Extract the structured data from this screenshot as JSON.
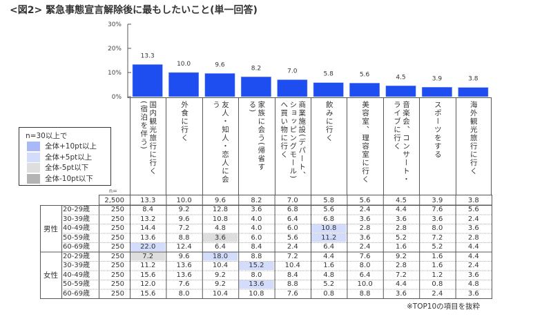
{
  "title": "<図2> 緊急事態宣言解除後に最もしたいこと(単一回答)",
  "colors": {
    "bar": "#1f4ef0",
    "plus10": "#a9b9f7",
    "plus5": "#d3dcfb",
    "minus5": "#dedede",
    "minus10": "#b4b4b4"
  },
  "legend": {
    "title": "n=30以上で",
    "items": [
      {
        "label": "全体+10pt以上",
        "color_key": "plus10"
      },
      {
        "label": "全体+5pt以上",
        "color_key": "plus5"
      },
      {
        "label": "全体-5pt以下",
        "color_key": "minus5"
      },
      {
        "label": "全体-10pt以下",
        "color_key": "minus10"
      }
    ]
  },
  "chart_data": {
    "type": "bar",
    "title": "<図2> 緊急事態宣言解除後に最もしたいこと(単一回答)",
    "ylim": [
      0,
      30
    ],
    "yticks": [
      "0%",
      "10%",
      "20%",
      "30%"
    ],
    "ytick_values": [
      0,
      10,
      20,
      30
    ],
    "categories": [
      {
        "lines": [
          "国内観光旅行に行く",
          "(宿泊を伴う)"
        ]
      },
      {
        "lines": [
          "外食に行く"
        ]
      },
      {
        "lines": [
          "友人・知人・恋人に会",
          "う"
        ]
      },
      {
        "lines": [
          "家族に会う(帰省す",
          "る)"
        ]
      },
      {
        "lines": [
          "商業施設(デパート、",
          "ショッピングモール)",
          "へ買い物に行く"
        ]
      },
      {
        "lines": [
          "飲みに行く"
        ]
      },
      {
        "lines": [
          "美容室、理容室に行く"
        ]
      },
      {
        "lines": [
          "音楽会、コンサート・",
          "ライブに行く"
        ]
      },
      {
        "lines": [
          "スポーツをする"
        ]
      },
      {
        "lines": [
          "海外観光旅行に行く"
        ]
      }
    ],
    "values": [
      13.3,
      10.0,
      9.6,
      8.2,
      7.0,
      5.8,
      5.6,
      4.5,
      3.9,
      3.8
    ],
    "value_labels": [
      "13.3",
      "10.0",
      "9.6",
      "8.2",
      "7.0",
      "5.8",
      "5.6",
      "4.5",
      "3.9",
      "3.8"
    ],
    "grid": false
  },
  "table": {
    "n_label": "n=",
    "total": {
      "n": "2,500",
      "values": [
        "13.3",
        "10.0",
        "9.6",
        "8.2",
        "7.0",
        "5.8",
        "5.6",
        "4.5",
        "3.9",
        "3.8"
      ]
    },
    "groups": [
      {
        "label": "男性",
        "rows": [
          {
            "age": "20-29歳",
            "n": "250",
            "values": [
              "8.4",
              "9.2",
              "12.8",
              "3.6",
              "6.8",
              "5.6",
              "2.4",
              "4.4",
              "7.6",
              "5.6"
            ],
            "highlights": [
              null,
              null,
              null,
              null,
              null,
              null,
              null,
              null,
              null,
              null
            ]
          },
          {
            "age": "30-39歳",
            "n": "250",
            "values": [
              "13.2",
              "9.6",
              "10.8",
              "4.0",
              "6.4",
              "6.8",
              "3.6",
              "3.6",
              "3.6",
              "2.4"
            ],
            "highlights": [
              null,
              null,
              null,
              null,
              null,
              null,
              null,
              null,
              null,
              null
            ]
          },
          {
            "age": "40-49歳",
            "n": "250",
            "values": [
              "14.4",
              "7.2",
              "4.8",
              "4.0",
              "6.0",
              "10.8",
              "2.8",
              "2.8",
              "8.0",
              "3.6"
            ],
            "highlights": [
              null,
              null,
              null,
              null,
              null,
              "plus5",
              null,
              null,
              null,
              null
            ]
          },
          {
            "age": "50-59歳",
            "n": "250",
            "values": [
              "13.6",
              "8.8",
              "3.6",
              "6.0",
              "5.6",
              "11.2",
              "3.6",
              "5.2",
              "7.2",
              "2.8"
            ],
            "highlights": [
              null,
              null,
              "minus5",
              null,
              null,
              "plus5",
              null,
              null,
              null,
              null
            ]
          },
          {
            "age": "60-69歳",
            "n": "250",
            "values": [
              "22.0",
              "12.4",
              "6.4",
              "8.4",
              "2.4",
              "6.4",
              "2.4",
              "1.6",
              "5.2",
              "4.4"
            ],
            "highlights": [
              "plus5",
              null,
              null,
              null,
              null,
              null,
              null,
              null,
              null,
              null
            ]
          }
        ]
      },
      {
        "label": "女性",
        "rows": [
          {
            "age": "20-29歳",
            "n": "250",
            "values": [
              "7.2",
              "9.6",
              "18.0",
              "8.8",
              "7.2",
              "4.4",
              "7.6",
              "9.2",
              "1.6",
              "4.4"
            ],
            "highlights": [
              "minus5",
              null,
              "plus5",
              null,
              null,
              null,
              null,
              null,
              null,
              null
            ]
          },
          {
            "age": "30-39歳",
            "n": "250",
            "values": [
              "11.2",
              "13.6",
              "10.4",
              "15.2",
              "10.4",
              "1.6",
              "8.0",
              "2.8",
              "1.6",
              "2.4"
            ],
            "highlights": [
              null,
              null,
              null,
              "plus5",
              null,
              null,
              null,
              null,
              null,
              null
            ]
          },
          {
            "age": "40-49歳",
            "n": "250",
            "values": [
              "15.6",
              "13.6",
              "9.2",
              "8.0",
              "8.4",
              "4.8",
              "6.4",
              "7.2",
              "1.2",
              "3.6"
            ],
            "highlights": [
              null,
              null,
              null,
              null,
              null,
              null,
              null,
              null,
              null,
              null
            ]
          },
          {
            "age": "50-59歳",
            "n": "250",
            "values": [
              "12.0",
              "7.6",
              "9.2",
              "13.6",
              "8.8",
              "5.2",
              "10.0",
              "4.4",
              "0.8",
              "4.8"
            ],
            "highlights": [
              null,
              null,
              null,
              "plus5",
              null,
              null,
              null,
              null,
              null,
              null
            ]
          },
          {
            "age": "60-69歳",
            "n": "250",
            "values": [
              "15.6",
              "8.0",
              "10.4",
              "10.8",
              "7.6",
              "0.8",
              "8.8",
              "3.6",
              "2.4",
              "3.6"
            ],
            "highlights": [
              null,
              null,
              null,
              null,
              null,
              null,
              null,
              null,
              null,
              null
            ]
          }
        ]
      }
    ]
  },
  "footnote": "※TOP10の項目を抜粋"
}
